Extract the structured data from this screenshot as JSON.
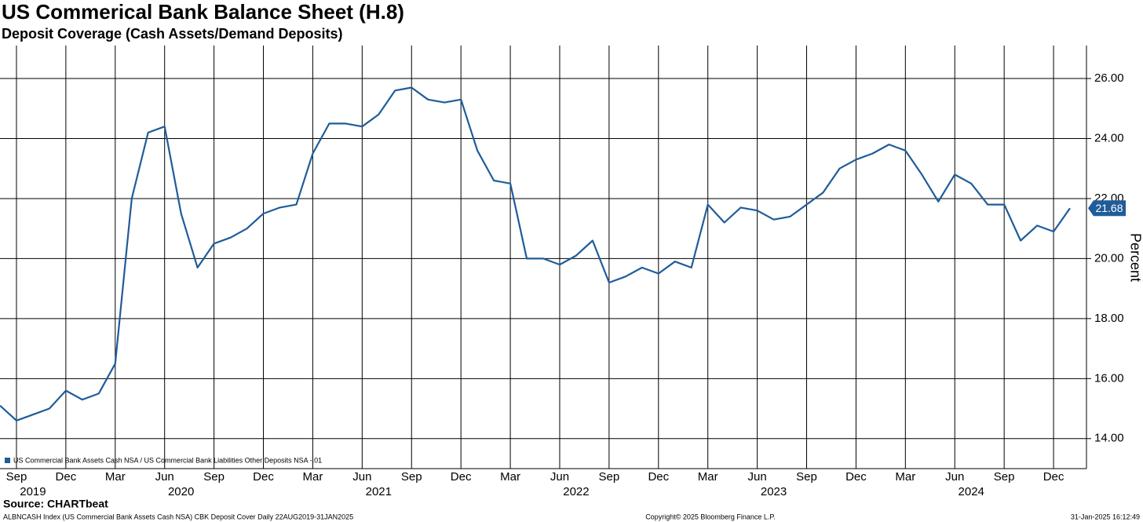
{
  "chart_data": {
    "type": "line",
    "title": "US Commerical Bank Balance Sheet (H.8)",
    "subtitle": "Deposit Coverage (Cash Assets/Demand Deposits)",
    "y_label": "Percent",
    "source": "Source: CHARTbeat",
    "footer_left": "ALBNCASH Index (US Commercial Bank Assets Cash NSA) CBK Deposit Cover  Daily 22AUG2019-31JAN2025",
    "footer_center": "Copyright© 2025 Bloomberg Finance L.P.",
    "footer_right": "31-Jan-2025 16:12:49",
    "grid": true,
    "legend": "lower left",
    "xlim": [
      "2019-08",
      "2025-02"
    ],
    "ylim": [
      13,
      27.1
    ],
    "yticks": [
      {
        "value": 14,
        "label": "14.00"
      },
      {
        "value": 16,
        "label": "16.00"
      },
      {
        "value": 18,
        "label": "18.00"
      },
      {
        "value": 20,
        "label": "20.00"
      },
      {
        "value": 22,
        "label": "22.00"
      },
      {
        "value": 24,
        "label": "24.00"
      },
      {
        "value": 26,
        "label": "26.00"
      }
    ],
    "xticks": [
      {
        "value": "2019-09",
        "label": "Sep"
      },
      {
        "value": "2019-12",
        "label": "Dec"
      },
      {
        "value": "2020-03",
        "label": "Mar"
      },
      {
        "value": "2020-06",
        "label": "Jun"
      },
      {
        "value": "2020-09",
        "label": "Sep"
      },
      {
        "value": "2020-12",
        "label": "Dec"
      },
      {
        "value": "2021-03",
        "label": "Mar"
      },
      {
        "value": "2021-06",
        "label": "Jun"
      },
      {
        "value": "2021-09",
        "label": "Sep"
      },
      {
        "value": "2021-12",
        "label": "Dec"
      },
      {
        "value": "2022-03",
        "label": "Mar"
      },
      {
        "value": "2022-06",
        "label": "Jun"
      },
      {
        "value": "2022-09",
        "label": "Sep"
      },
      {
        "value": "2022-12",
        "label": "Dec"
      },
      {
        "value": "2023-03",
        "label": "Mar"
      },
      {
        "value": "2023-06",
        "label": "Jun"
      },
      {
        "value": "2023-09",
        "label": "Sep"
      },
      {
        "value": "2023-12",
        "label": "Dec"
      },
      {
        "value": "2024-03",
        "label": "Mar"
      },
      {
        "value": "2024-06",
        "label": "Jun"
      },
      {
        "value": "2024-09",
        "label": "Sep"
      },
      {
        "value": "2024-12",
        "label": "Dec"
      }
    ],
    "xyears": [
      {
        "value": "2019-10",
        "label": "2019"
      },
      {
        "value": "2020-07",
        "label": "2020"
      },
      {
        "value": "2021-07",
        "label": "2021"
      },
      {
        "value": "2022-07",
        "label": "2022"
      },
      {
        "value": "2023-07",
        "label": "2023"
      },
      {
        "value": "2024-07",
        "label": "2024"
      }
    ],
    "x": [
      "2019-08",
      "2019-09",
      "2019-10",
      "2019-11",
      "2019-12",
      "2020-01",
      "2020-02",
      "2020-03",
      "2020-04",
      "2020-05",
      "2020-06",
      "2020-07",
      "2020-08",
      "2020-09",
      "2020-10",
      "2020-11",
      "2020-12",
      "2021-01",
      "2021-02",
      "2021-03",
      "2021-04",
      "2021-05",
      "2021-06",
      "2021-07",
      "2021-08",
      "2021-09",
      "2021-10",
      "2021-11",
      "2021-12",
      "2022-01",
      "2022-02",
      "2022-03",
      "2022-04",
      "2022-05",
      "2022-06",
      "2022-07",
      "2022-08",
      "2022-09",
      "2022-10",
      "2022-11",
      "2022-12",
      "2023-01",
      "2023-02",
      "2023-03",
      "2023-04",
      "2023-05",
      "2023-06",
      "2023-07",
      "2023-08",
      "2023-09",
      "2023-10",
      "2023-11",
      "2023-12",
      "2024-01",
      "2024-02",
      "2024-03",
      "2024-04",
      "2024-05",
      "2024-06",
      "2024-07",
      "2024-08",
      "2024-09",
      "2024-10",
      "2024-11",
      "2024-12",
      "2025-01"
    ],
    "series": [
      {
        "name": "US Commercial Bank Assets Cash NSA / US Commercial Bank Liabilities Other Deposits NSA -.01",
        "color": "#1f5c99",
        "values": [
          15.1,
          14.6,
          14.8,
          15.0,
          15.6,
          15.3,
          15.5,
          16.5,
          22.0,
          24.2,
          24.4,
          21.5,
          19.7,
          20.5,
          20.7,
          21.0,
          21.5,
          21.7,
          21.8,
          23.5,
          24.5,
          24.5,
          24.4,
          24.8,
          25.6,
          25.7,
          25.3,
          25.2,
          25.3,
          23.6,
          22.6,
          22.5,
          20.0,
          20.0,
          19.8,
          20.1,
          20.6,
          19.2,
          19.4,
          19.7,
          19.5,
          19.9,
          19.7,
          21.8,
          21.2,
          21.7,
          21.6,
          21.3,
          21.4,
          21.8,
          22.2,
          23.0,
          23.3,
          23.5,
          23.8,
          23.6,
          22.8,
          21.9,
          22.8,
          22.5,
          21.8,
          21.8,
          20.6,
          21.1,
          20.9,
          21.68
        ]
      }
    ]
  }
}
